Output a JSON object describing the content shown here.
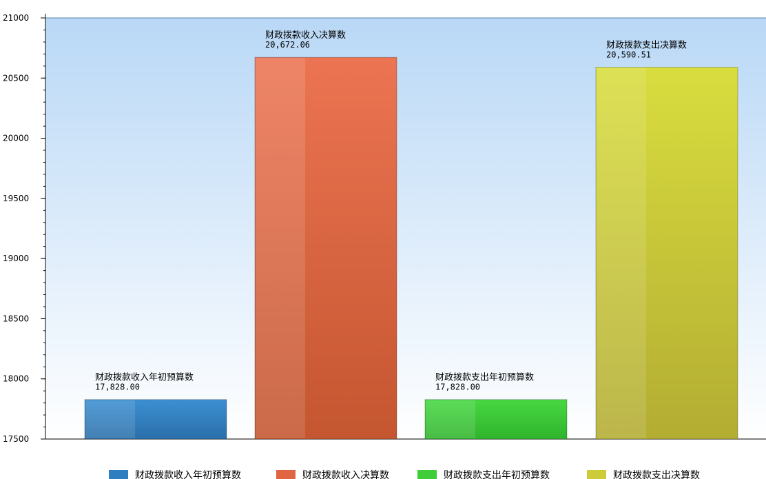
{
  "chart_data": {
    "type": "bar",
    "title": "",
    "xlabel": "",
    "ylabel": "",
    "ylim": [
      17500,
      21000
    ],
    "yticks": [
      17500,
      18000,
      18500,
      19000,
      19500,
      20000,
      20500,
      21000
    ],
    "categories": [
      "财政拨款收入年初预算数",
      "财政拨款收入决算数",
      "财政拨款支出年初预算数",
      "财政拨款支出决算数"
    ],
    "values": [
      17828.0,
      20672.06,
      17828.0,
      20590.51
    ],
    "value_labels": [
      "17,828.00",
      "20,672.06",
      "17,828.00",
      "20,590.51"
    ],
    "colors": [
      "#2f7fc0",
      "#df6640",
      "#3fcd3a",
      "#cccc38"
    ],
    "grid": false,
    "legend_position": "bottom",
    "legend": [
      "财政拨款收入年初预算数",
      "财政拨款收入决算数",
      "财政拨款支出年初预算数",
      "财政拨款支出决算数"
    ]
  }
}
